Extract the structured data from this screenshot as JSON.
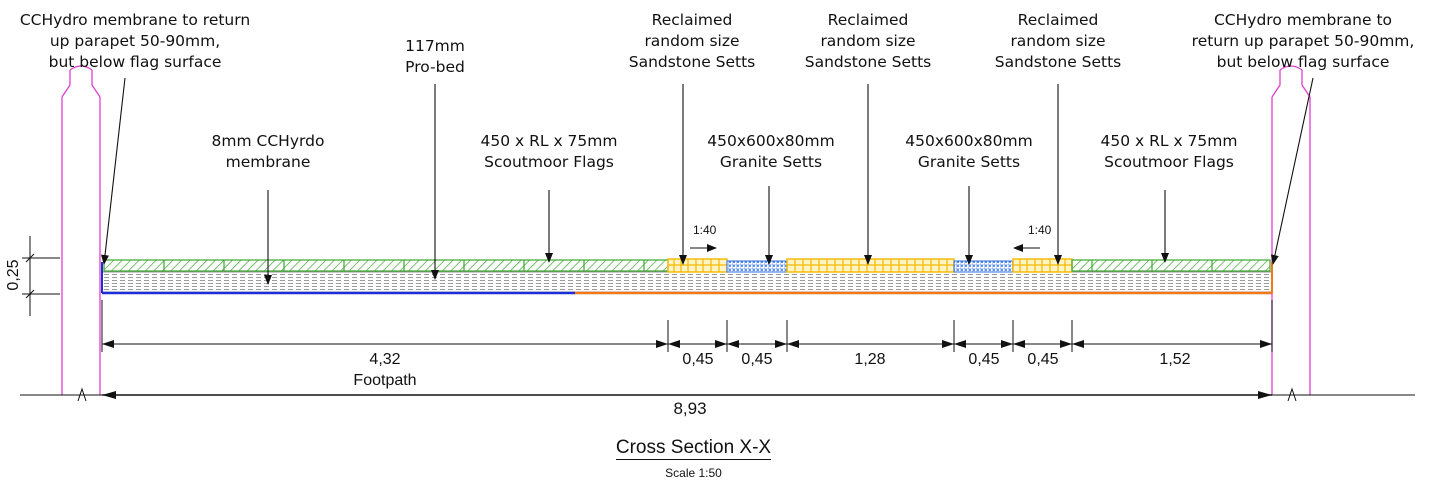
{
  "labels": {
    "membrane_return_left": "CCHydro membrane to return\nup parapet 50-90mm,\nbut below flag surface",
    "probed": "117mm\nPro-bed",
    "membrane_8mm": "8mm CCHyrdo\nmembrane",
    "scoutmoor_left": "450 x RL x 75mm\nScoutmoor Flags",
    "reclaimed_1": "Reclaimed\nrandom size\nSandstone Setts",
    "reclaimed_2": "Reclaimed\nrandom size\nSandstone Setts",
    "reclaimed_3": "Reclaimed\nrandom size\nSandstone Setts",
    "granite_1": "450x600x80mm\nGranite Setts",
    "granite_2": "450x600x80mm\nGranite Setts",
    "scoutmoor_right": "450 x RL x 75mm\nScoutmoor Flags",
    "membrane_return_right": "CCHydro membrane to\nreturn up parapet 50-90mm,\nbut below flag surface"
  },
  "slopes": {
    "left": "1:40",
    "right": "1:40"
  },
  "dimensions": {
    "thickness": "0,25",
    "segments": [
      "4,32",
      "0,45",
      "0,45",
      "1,28",
      "0,45",
      "0,45",
      "1,52"
    ],
    "footpath_label": "Footpath",
    "total": "8,93"
  },
  "caption": {
    "title": "Cross Section X-X",
    "scale": "Scale 1:50"
  },
  "colors": {
    "flags": "#3aa82c",
    "reclaimed": "#f5b800",
    "granite": "#2f6fe0",
    "membrane_left": "#1f2fd6",
    "membrane_right": "#f07a1a",
    "parapet": "#e040d0",
    "linework": "#111111",
    "bed_hatch": "#9a9a9a"
  }
}
